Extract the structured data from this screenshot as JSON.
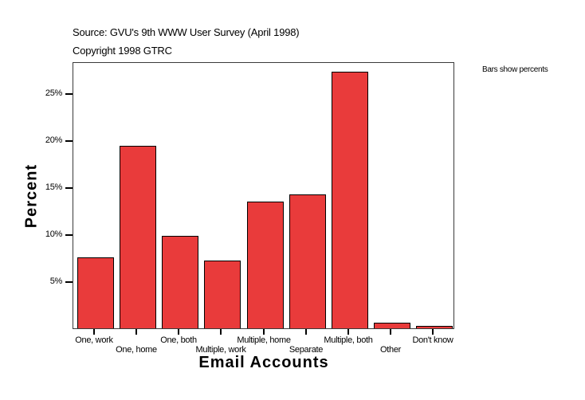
{
  "header": {
    "source": "Source: GVU's 9th WWW User Survey (April 1998)",
    "copyright": "Copyright 1998 GTRC"
  },
  "note": "Bars show percents",
  "colors": {
    "bar_fill": "#e93b3b",
    "bar_outline": "#000000",
    "plot_border": "#3a3a3a"
  },
  "chart_data": {
    "type": "bar",
    "title": "",
    "subtitle": "Source: GVU's 9th WWW User Survey (April 1998) / Copyright 1998 GTRC",
    "xlabel": "Email Accounts",
    "ylabel": "Percent",
    "categories": [
      "One, work",
      "One, home",
      "One, both",
      "Multiple, work",
      "Multiple, home",
      "Separate",
      "Multiple, both",
      "Other",
      "Don't know"
    ],
    "values": [
      7.5,
      19.4,
      9.8,
      7.2,
      13.5,
      14.2,
      27.3,
      0.6,
      0.25
    ],
    "unit": "%",
    "ylim": [
      0,
      28.4
    ],
    "yticks": [
      5,
      10,
      15,
      20,
      25
    ],
    "ytick_labels": [
      "5%",
      "10%",
      "15%",
      "20%",
      "25%"
    ],
    "grid": false,
    "legend": null,
    "annotations": [
      "Bars show percents"
    ]
  }
}
